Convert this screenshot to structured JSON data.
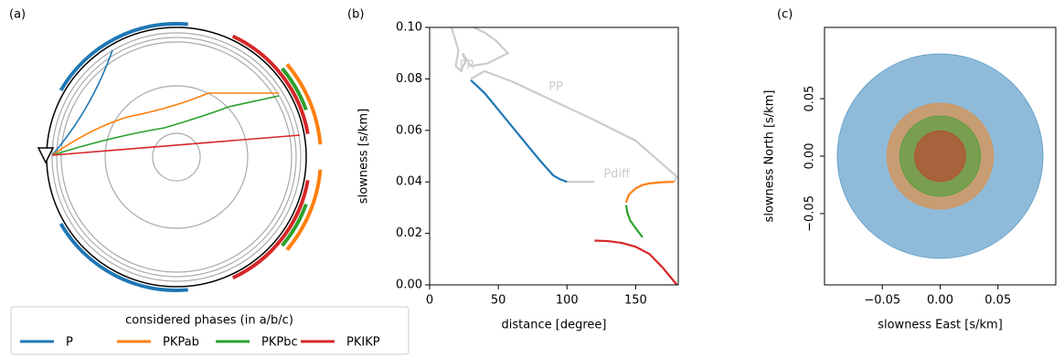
{
  "legend": {
    "title": "considered phases (in a/b/c)"
  },
  "chart_data": [
    {
      "type": "ray-diagram",
      "title": "(a)"
    },
    {
      "type": "line",
      "title": "(b)",
      "x_label": "distance [degree]",
      "y_label": "slowness [s/km]",
      "xlim": [
        0,
        181
      ],
      "ylim": [
        0,
        0.1
      ],
      "xticks": [
        0,
        50,
        100,
        150
      ],
      "yticks": [
        {
          "value": 0,
          "label": "0.00"
        },
        {
          "value": 0.02,
          "label": "0.02"
        },
        {
          "value": 0.04,
          "label": "0.04"
        },
        {
          "value": 0.06,
          "label": "0.06"
        },
        {
          "value": 0.08,
          "label": "0.08"
        },
        {
          "value": 0.1,
          "label": "0.10"
        }
      ],
      "series": [
        {
          "name": "P",
          "color": "#1f77b4",
          "x": [
            30,
            40,
            50,
            60,
            70,
            80,
            90,
            95,
            100
          ],
          "values": [
            0.0795,
            0.0745,
            0.068,
            0.0615,
            0.055,
            0.0485,
            0.0425,
            0.041,
            0.04
          ]
        },
        {
          "name": "PKPab",
          "color": "#ff7f0e",
          "x": [
            143,
            145,
            150,
            155,
            160,
            170,
            178
          ],
          "values": [
            0.032,
            0.035,
            0.0375,
            0.0388,
            0.0394,
            0.0399,
            0.04
          ]
        },
        {
          "name": "PKPbc",
          "color": "#2ca02c",
          "x": [
            143,
            144,
            146,
            150,
            155
          ],
          "values": [
            0.031,
            0.028,
            0.025,
            0.022,
            0.0185
          ]
        },
        {
          "name": "PKIKP",
          "color": "#d62728",
          "x": [
            120,
            130,
            140,
            150,
            160,
            170,
            180
          ],
          "values": [
            0.0172,
            0.017,
            0.0163,
            0.0148,
            0.012,
            0.0065,
            0
          ]
        }
      ],
      "reference_curves": [
        {
          "label": "PR",
          "color": "#cccccc",
          "x": [
            16,
            21,
            19,
            23,
            26,
            24,
            30,
            42,
            57,
            48,
            40,
            32
          ],
          "values": [
            0.1,
            0.091,
            0.085,
            0.083,
            0.087,
            0.09,
            0.085,
            0.086,
            0.09,
            0.095,
            0.098,
            0.1
          ]
        },
        {
          "label": "PP",
          "color": "#cccccc",
          "x": [
            30,
            40,
            60,
            80,
            120,
            150,
            180,
            178
          ],
          "values": [
            0.08,
            0.083,
            0.079,
            0.074,
            0.064,
            0.056,
            0.042,
            0.04
          ]
        },
        {
          "label": "Pdiff",
          "color": "#cccccc",
          "x": [
            100,
            120
          ],
          "values": [
            0.04,
            0.04
          ]
        }
      ]
    },
    {
      "type": "disk",
      "title": "(c)",
      "x_label": "slowness East [s/km]",
      "y_label": "slowness North [s/km]",
      "xlim": [
        -0.1,
        0.1
      ],
      "ylim": [
        -0.112,
        0.112
      ],
      "alpha": 0.5,
      "xticks": [
        {
          "value": -0.05,
          "label": "−0.05"
        },
        {
          "value": 0,
          "label": "0.00"
        },
        {
          "value": 0.05,
          "label": "0.05"
        }
      ],
      "yticks": [
        {
          "value": -0.05,
          "label": "−0.05"
        },
        {
          "value": 0,
          "label": "0.00"
        },
        {
          "value": 0.05,
          "label": "0.05"
        }
      ],
      "series": [
        {
          "color": "#1f77b4",
          "values": [
            0.089
          ]
        },
        {
          "color": "#ff7f0e",
          "values": [
            0.046
          ]
        },
        {
          "color": "#2ca02c",
          "values": [
            0.035
          ]
        },
        {
          "color": "#d62728",
          "values": [
            0.022
          ]
        }
      ]
    }
  ]
}
